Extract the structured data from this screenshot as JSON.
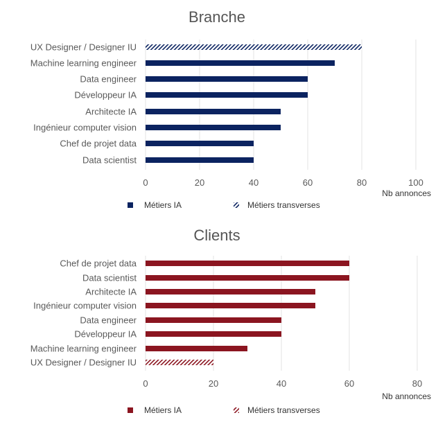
{
  "chart_data": [
    {
      "type": "bar",
      "orientation": "horizontal",
      "title": "Branche",
      "xlabel": "Nb annonces",
      "ylabel": "",
      "xlim": [
        0,
        100
      ],
      "xticks": [
        "0",
        "20",
        "40",
        "60",
        "80",
        "100"
      ],
      "grid": true,
      "color": "#0b2360",
      "categories": [
        "UX Designer / Designer IU",
        "Machine learning engineer",
        "Data engineer",
        "Développeur IA",
        "Architecte IA",
        "Ingénieur computer vision",
        "Chef de projet data",
        "Data scientist"
      ],
      "values": [
        80,
        70,
        60,
        60,
        50,
        50,
        40,
        40
      ],
      "series_of": [
        "Métiers transverses",
        "Métiers IA",
        "Métiers IA",
        "Métiers IA",
        "Métiers IA",
        "Métiers IA",
        "Métiers IA",
        "Métiers IA"
      ],
      "legend": [
        "Métiers IA",
        "Métiers transverses"
      ],
      "legend_position": "bottom"
    },
    {
      "type": "bar",
      "orientation": "horizontal",
      "title": "Clients",
      "xlabel": "Nb annonces",
      "ylabel": "",
      "xlim": [
        0,
        80
      ],
      "xticks": [
        "0",
        "20",
        "40",
        "60",
        "80"
      ],
      "grid": true,
      "color": "#8b1520",
      "categories": [
        "Chef de projet data",
        "Data scientist",
        "Architecte IA",
        "Ingénieur computer vision",
        "Data engineer",
        "Développeur IA",
        "Machine learning engineer",
        "UX Designer / Designer IU"
      ],
      "values": [
        60,
        60,
        50,
        50,
        40,
        40,
        30,
        20
      ],
      "series_of": [
        "Métiers IA",
        "Métiers IA",
        "Métiers IA",
        "Métiers IA",
        "Métiers IA",
        "Métiers IA",
        "Métiers IA",
        "Métiers transverses"
      ],
      "legend": [
        "Métiers IA",
        "Métiers transverses"
      ],
      "legend_position": "bottom"
    }
  ]
}
